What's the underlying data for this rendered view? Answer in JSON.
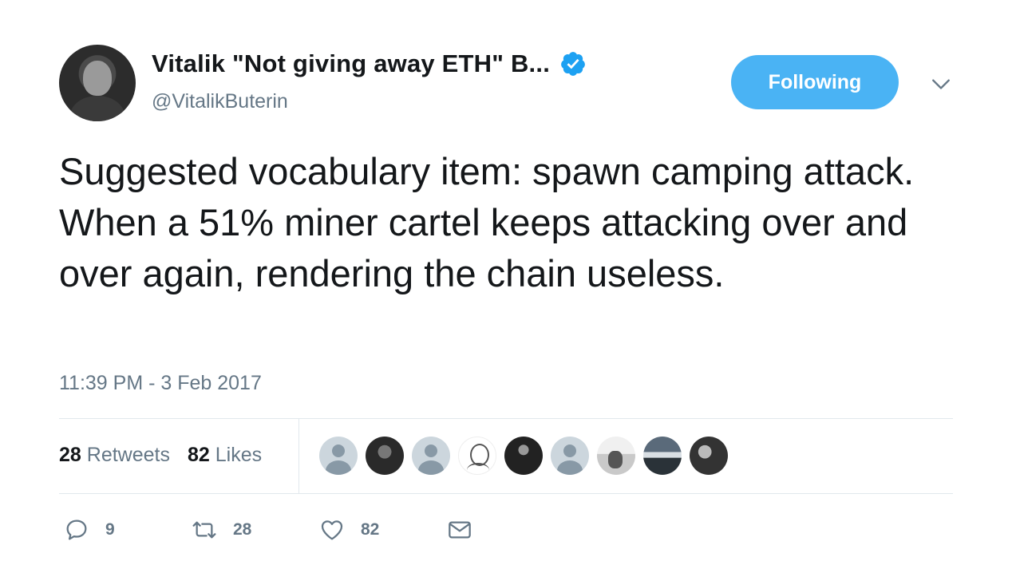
{
  "author": {
    "display_name": "Vitalik \"Not giving away ETH\" B...",
    "handle": "@VitalikButerin",
    "verified": true,
    "verified_icon": "verified-badge-icon",
    "avatar": "profile-photo"
  },
  "header": {
    "follow_label": "Following",
    "caret_icon": "chevron-down-icon"
  },
  "tweet": {
    "text": "Suggested vocabulary item: spawn camping attack. When a 51% miner cartel keeps attacking over and over again, rendering the chain useless.",
    "timestamp": "11:39 PM - 3 Feb 2017"
  },
  "stats": {
    "retweets_count": "28",
    "retweets_label": "Retweets",
    "likes_count": "82",
    "likes_label": "Likes"
  },
  "likers": [
    "default-avatar",
    "photo",
    "default-avatar",
    "sketch",
    "photo",
    "default-avatar",
    "photo",
    "photo",
    "photo"
  ],
  "actions": {
    "reply_count": "9",
    "retweet_count": "28",
    "like_count": "82"
  },
  "colors": {
    "accent": "#4ab3f4",
    "text": "#14171a",
    "muted": "#657786",
    "divider": "#e1e8ed"
  }
}
